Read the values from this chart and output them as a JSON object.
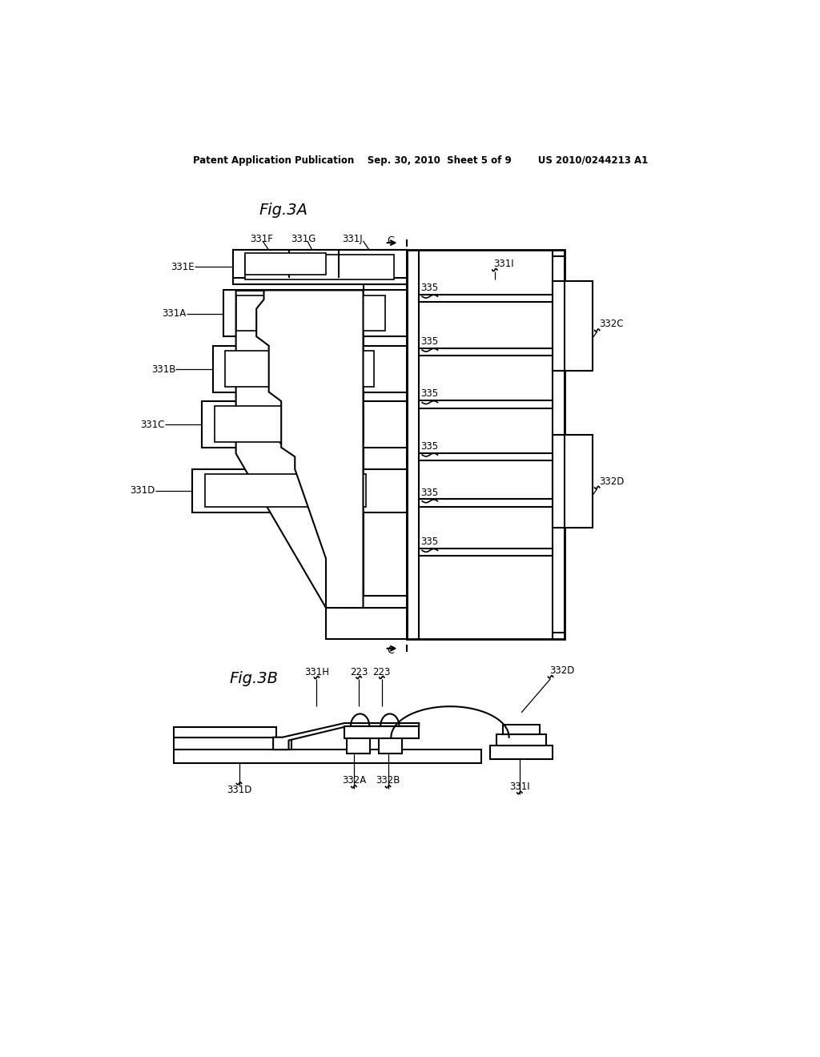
{
  "background_color": "#ffffff",
  "line_color": "#000000",
  "header_text": "Patent Application Publication    Sep. 30, 2010  Sheet 5 of 9        US 2010/0244213 A1",
  "fig3a_title": "Fig.3A",
  "fig3b_title": "Fig.3B"
}
